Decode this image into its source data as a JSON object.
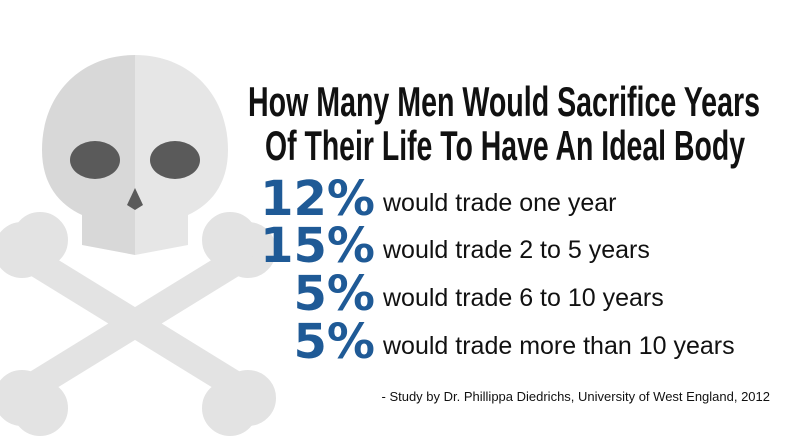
{
  "title_lines": [
    "How Many Men Would Sacrifice Years",
    "Of Their Life To Have An Ideal Body"
  ],
  "stats": [
    {
      "percent": "12%",
      "text": "would trade one year"
    },
    {
      "percent": "15%",
      "text": "would trade 2 to 5 years"
    },
    {
      "percent": "5%",
      "text": "would trade 6 to 10 years"
    },
    {
      "percent": "5%",
      "text": "would trade more than 10 years"
    }
  ],
  "source": "- Study by Dr. Phillippa Diedrichs, University of West England, 2012"
}
